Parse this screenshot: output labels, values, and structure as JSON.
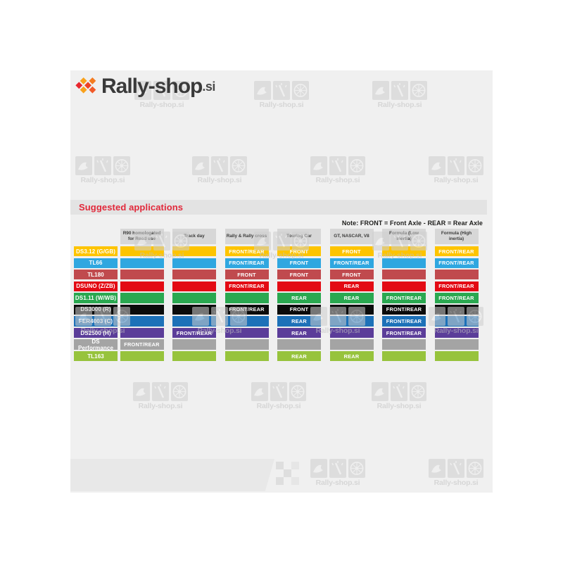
{
  "title_bar": {
    "label": "Suggested applications"
  },
  "watermark": {
    "text": "Rally-shop.si"
  },
  "footer_logo": {
    "brand": "Rally-shop",
    "tld": ".si"
  },
  "colors": {
    "page_bg": "#ffffff",
    "content_bg": "#f0f0f0",
    "title_bar_bg": "#e3e3e3",
    "title_text": "#e2283a",
    "header_cell_bg": "#d7d7d7",
    "note_text": "#1d1d1b",
    "footer_bar_bg": "#e8e8e8",
    "brand_text": "#3a3a3a",
    "brand_orange": "#f26522"
  },
  "chart_data": {
    "type": "table",
    "title": "Suggested applications",
    "note": "Note: FRONT = Front Axle - REAR = Rear Axle",
    "columns": [
      "R90 homologated for Road use",
      "Track day",
      "Rally & Rally cross",
      "Touring Car",
      "GT, NASCAR, V8",
      "Formula (Low inertia)",
      "Formula (High inertia)"
    ],
    "rows": [
      {
        "label": "DS3.12 (G/GB)",
        "color": "#fdc400",
        "cells": [
          "",
          "",
          "FRONT/REAR",
          "FRONT",
          "FRONT",
          "",
          "FRONT/REAR"
        ]
      },
      {
        "label": "TL66",
        "color": "#2fa7e0",
        "cells": [
          "",
          "",
          "FRONT/REAR",
          "FRONT",
          "FRONT/REAR",
          "",
          "FRONT/REAR"
        ]
      },
      {
        "label": "TL180",
        "color": "#c04a4e",
        "cells": [
          "",
          "",
          "FRONT",
          "FRONT",
          "FRONT",
          "",
          ""
        ]
      },
      {
        "label": "DSUNO (Z/ZB)",
        "color": "#e30b14",
        "cells": [
          "",
          "",
          "FRONT/REAR",
          "",
          "REAR",
          "",
          "FRONT/REAR"
        ]
      },
      {
        "label": "DS1.11 (W/WB)",
        "color": "#2aa850",
        "cells": [
          "",
          "",
          "",
          "REAR",
          "REAR",
          "FRONT/REAR",
          "FRONT/REAR"
        ]
      },
      {
        "label": "DS3000 (R)",
        "color": "#0b0b0b",
        "cells": [
          "",
          "",
          "FRONT/REAR",
          "FRONT",
          "",
          "FRONT/REAR",
          ""
        ]
      },
      {
        "label": "FER4003 (C)",
        "color": "#1d71b8",
        "cells": [
          "",
          "",
          "",
          "REAR",
          "",
          "FRONT/REAR",
          ""
        ]
      },
      {
        "label": "DS2500 (H)",
        "color": "#5b3d99",
        "cells": [
          "",
          "FRONT/REAR",
          "",
          "REAR",
          "",
          "FRONT/REAR",
          ""
        ]
      },
      {
        "label": "DS Performance",
        "color": "#a4a4a4",
        "cells": [
          "FRONT/REAR",
          "",
          "",
          "",
          "",
          "",
          ""
        ]
      },
      {
        "label": "TL163",
        "color": "#97c33c",
        "cells": [
          "",
          "",
          "",
          "REAR",
          "REAR",
          "",
          ""
        ]
      }
    ]
  }
}
